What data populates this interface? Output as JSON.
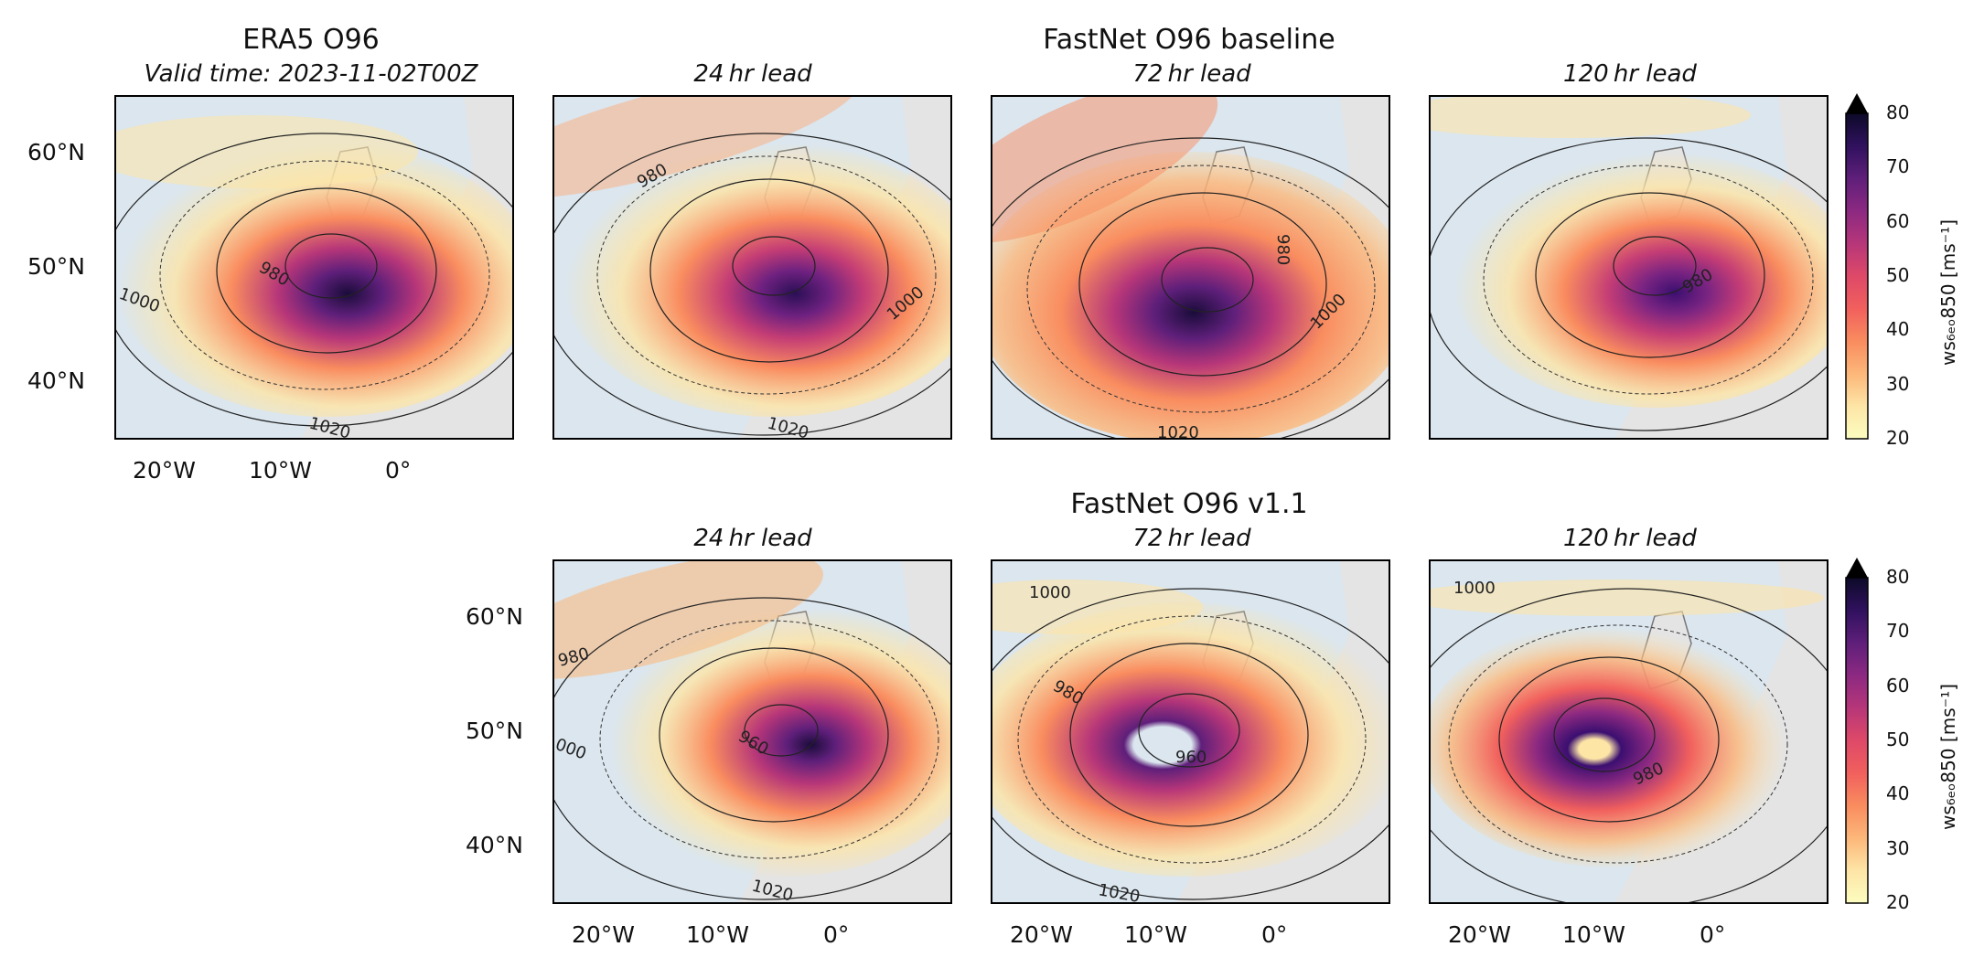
{
  "era5": {
    "title": "ERA5 O96",
    "valid_time": "Valid time: 2023-11-02T00Z"
  },
  "baseline": {
    "title": "FastNet O96 baseline"
  },
  "v11": {
    "title": "FastNet O96 v1.1"
  },
  "leads": {
    "l24": "24 hr lead",
    "l72": "72 hr lead",
    "l120": "120 hr lead"
  },
  "lat_ticks": [
    "60°N",
    "50°N",
    "40°N"
  ],
  "lon_ticks": [
    "20°W",
    "10°W",
    "0°"
  ],
  "contours": {
    "c980": "980",
    "c960": "960",
    "c1000": "1000",
    "c1020": "1020",
    "c000": "000"
  },
  "colorbar": {
    "label": "ws₆ₑₒ850 [ms⁻¹]",
    "ticks": [
      "80",
      "70",
      "60",
      "50",
      "40",
      "30",
      "20"
    ],
    "colors": [
      "#0d0a28",
      "#30115e",
      "#5e1f7a",
      "#8c2981",
      "#b63679",
      "#de4968",
      "#f1605d",
      "#f98c5f",
      "#fcb779",
      "#fde5a6",
      "#fcfdbf"
    ]
  }
}
